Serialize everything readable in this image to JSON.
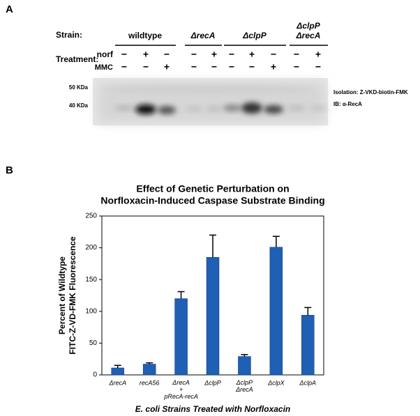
{
  "panel_a": {
    "label": "A",
    "strain_label": "Strain:",
    "strains": [
      "wildtype",
      "ΔrecA",
      "ΔclpP",
      "ΔclpP ΔrecA"
    ],
    "treatment_label": "Treatment:",
    "norf_label": "norf",
    "mmc_label": "MMC",
    "norf_signs": [
      "−",
      "+",
      "−",
      "−",
      "+",
      "−",
      "+",
      "−",
      "−",
      "+"
    ],
    "mmc_signs": [
      "−",
      "−",
      "+",
      "−",
      "−",
      "−",
      "−",
      "+",
      "−",
      "−"
    ],
    "marker_50": "50 KDa",
    "marker_40": "40 KDa",
    "isolation": "Isolation: Z-VKD-biotin-FMK",
    "blot_ib": "IB: α-RecA"
  },
  "chart_data": {
    "type": "bar",
    "panel_label": "B",
    "title": [
      "Effect of Genetic Perturbation on",
      "Norfloxacin-Induced Caspase Substrate Binding"
    ],
    "y_label": [
      "Percent of Wildtype",
      "FITC-Z-VD-FMK Fluorescence"
    ],
    "x_label": "E. coli Strains Treated with Norfloxacin",
    "categories": [
      "ΔrecA",
      "recA56",
      "ΔrecA + pRecA-recA",
      "ΔclpP",
      "ΔclpP ΔrecA",
      "ΔclpX",
      "ΔclpA"
    ],
    "values": [
      11,
      17,
      120,
      185,
      29,
      201,
      94
    ],
    "errors": [
      4,
      2,
      11,
      35,
      3,
      17,
      12
    ],
    "color": "#1f5fb4",
    "ylim": [
      0,
      250
    ],
    "yticks": [
      0,
      50,
      100,
      150,
      200,
      250
    ]
  }
}
